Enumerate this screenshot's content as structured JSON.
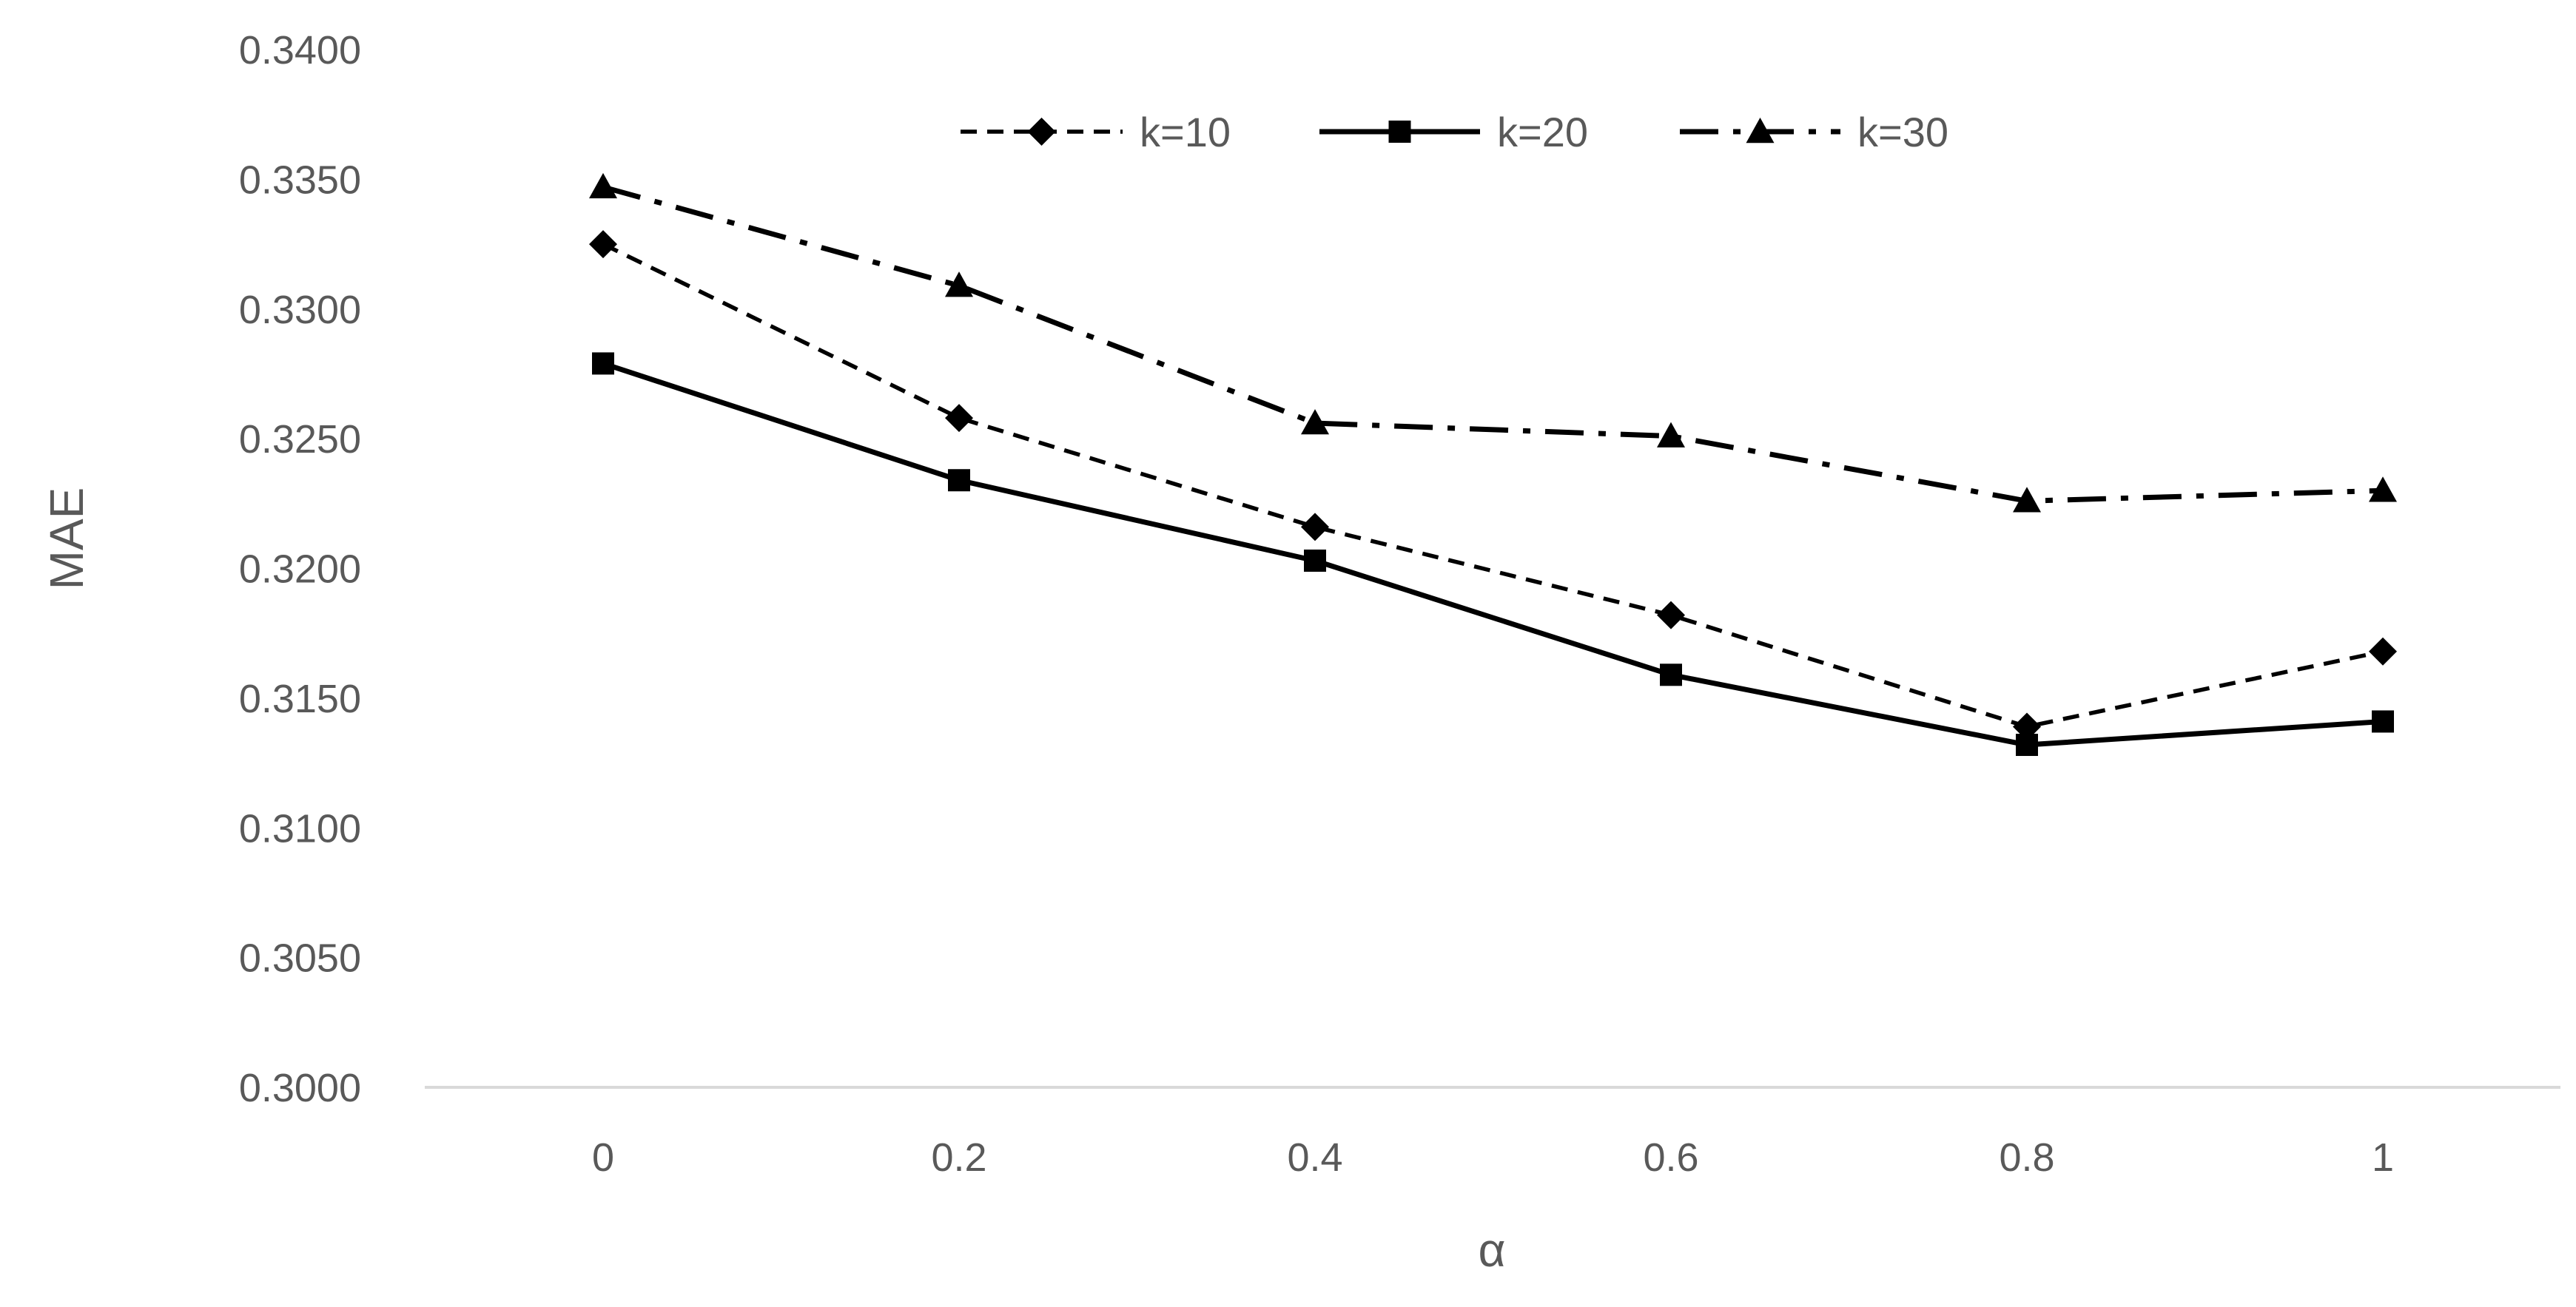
{
  "chart_data": {
    "type": "line",
    "title": "",
    "xlabel": "α",
    "ylabel": "MAE",
    "x": [
      "0",
      "0.2",
      "0.4",
      "0.6",
      "0.8",
      "1"
    ],
    "ylim": [
      0.3,
      0.34
    ],
    "yticks": [
      "0.3000",
      "0.3050",
      "0.3100",
      "0.3150",
      "0.3200",
      "0.3250",
      "0.3300",
      "0.3350",
      "0.3400"
    ],
    "grid": false,
    "legend_position": "top",
    "series": [
      {
        "name": "k=10",
        "values": [
          0.3325,
          0.3258,
          0.3216,
          0.3182,
          0.3139,
          0.3168
        ],
        "line_style": "dashed",
        "marker": "diamond",
        "color": "#000000"
      },
      {
        "name": "k=20",
        "values": [
          0.3279,
          0.3234,
          0.3203,
          0.3159,
          0.3132,
          0.3141
        ],
        "line_style": "solid",
        "marker": "square",
        "color": "#000000"
      },
      {
        "name": "k=30",
        "values": [
          0.3347,
          0.3309,
          0.3256,
          0.3251,
          0.3226,
          0.323
        ],
        "line_style": "dash-dot",
        "marker": "triangle",
        "color": "#000000"
      }
    ]
  }
}
